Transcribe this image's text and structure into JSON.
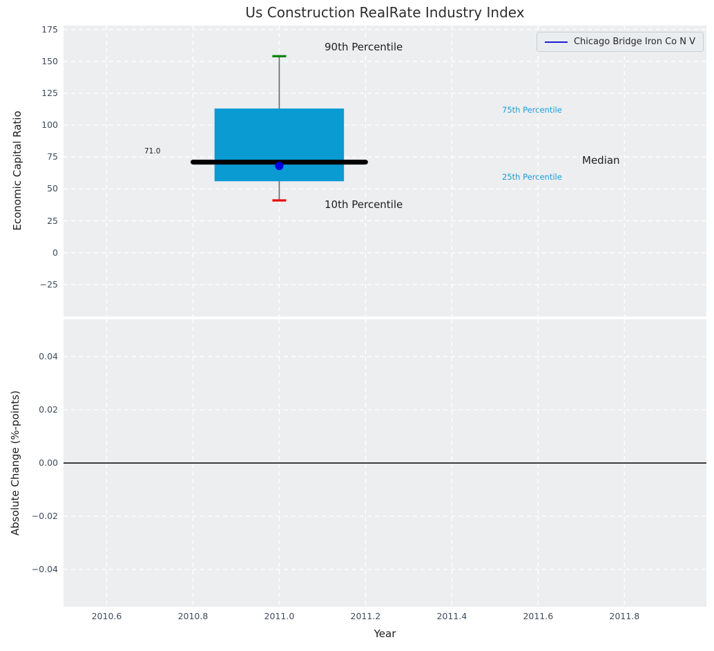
{
  "figure": {
    "title": "Us Construction RealRate Industry Index"
  },
  "legend": {
    "label": "Chicago Bridge Iron Co N V",
    "line_color": "#1b1bd4"
  },
  "chart_data": [
    {
      "type": "boxplot",
      "title": "Us Construction RealRate Industry Index",
      "ylabel": "Economic Capital Ratio",
      "xlabel": "",
      "xlim": [
        2010.5,
        2011.99
      ],
      "ylim": [
        -50,
        178
      ],
      "grid": "white dashed on light-gray background",
      "legend_position": "upper right",
      "xticks": [
        {
          "v": 2010.6,
          "label": "2010.6"
        },
        {
          "v": 2010.8,
          "label": "2010.8"
        },
        {
          "v": 2011.0,
          "label": "2011.0"
        },
        {
          "v": 2011.2,
          "label": "2011.2"
        },
        {
          "v": 2011.4,
          "label": "2011.4"
        },
        {
          "v": 2011.6,
          "label": "2011.6"
        },
        {
          "v": 2011.8,
          "label": "2011.8"
        }
      ],
      "yticks": [
        {
          "v": 175,
          "label": "175"
        },
        {
          "v": 150,
          "label": "150"
        },
        {
          "v": 125,
          "label": "125"
        },
        {
          "v": 100,
          "label": "100"
        },
        {
          "v": 75,
          "label": "75"
        },
        {
          "v": 50,
          "label": "50"
        },
        {
          "v": 25,
          "label": "25"
        },
        {
          "v": 0,
          "label": "0"
        },
        {
          "v": -25,
          "label": "−25"
        }
      ],
      "box": {
        "x": 2011.0,
        "p10": 41,
        "p25": 56,
        "median": 71,
        "p75": 113,
        "p90": 154,
        "box_x": [
          2010.85,
          2011.15
        ],
        "median_x": [
          2010.8,
          2011.2
        ]
      },
      "point": {
        "x": 2011.0,
        "y": 68,
        "name": "Chicago Bridge Iron Co N V"
      },
      "annotations": {
        "p90": "90th Percentile",
        "p10": "10th Percentile",
        "p75": "75th Percentile",
        "p25": "25th Percentile",
        "median": "Median",
        "median_value": "71.0"
      },
      "colors": {
        "box": "#0a9bd3",
        "median_line": "#000000",
        "whisker": "#666666",
        "cap_top": "#008000",
        "cap_bottom": "#ea0a0a",
        "point": "#0000e0",
        "grid": "#ffffff",
        "axes_bg": "#eceef0"
      }
    },
    {
      "type": "line",
      "ylabel": "Absolute Change (%-points)",
      "xlabel": "Year",
      "xlim": [
        2010.5,
        2011.99
      ],
      "ylim": [
        -0.054,
        0.054
      ],
      "xticks": [
        {
          "v": 2010.6,
          "label": "2010.6"
        },
        {
          "v": 2010.8,
          "label": "2010.8"
        },
        {
          "v": 2011.0,
          "label": "2011.0"
        },
        {
          "v": 2011.2,
          "label": "2011.2"
        },
        {
          "v": 2011.4,
          "label": "2011.4"
        },
        {
          "v": 2011.6,
          "label": "2011.6"
        },
        {
          "v": 2011.8,
          "label": "2011.8"
        }
      ],
      "yticks": [
        {
          "v": 0.04,
          "label": "0.04"
        },
        {
          "v": 0.02,
          "label": "0.02"
        },
        {
          "v": 0.0,
          "label": "0.00"
        },
        {
          "v": -0.02,
          "label": "−0.02"
        },
        {
          "v": -0.04,
          "label": "−0.04"
        }
      ],
      "zero_line": 0.0,
      "series": []
    }
  ]
}
